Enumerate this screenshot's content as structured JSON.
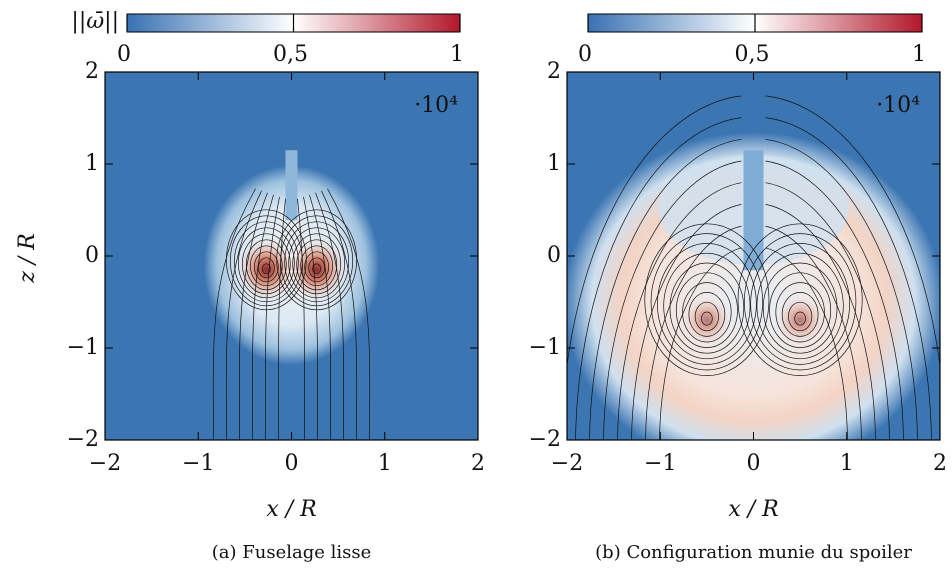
{
  "chart_data": [
    {
      "type": "contour",
      "caption": "(a) Fuselage lisse",
      "xlabel": "x / R",
      "ylabel": "z / R",
      "xlim": [
        -2,
        2
      ],
      "ylim": [
        -2,
        2
      ],
      "xticks": [
        {
          "value": -2,
          "label": "−2"
        },
        {
          "value": -1,
          "label": "−1"
        },
        0,
        1,
        2
      ],
      "yticks": [
        {
          "value": -2,
          "label": "−2"
        },
        {
          "value": -1,
          "label": "−1"
        },
        0,
        1,
        2
      ],
      "colorbar": {
        "label": "||ω̄||",
        "lim": [
          0,
          1
        ],
        "ticks": [
          0,
          {
            "value": 0.5,
            "label": "0,5"
          },
          1
        ],
        "multiplier": "·10⁴",
        "colors": [
          "#3a72b3",
          "#ffffff",
          "#b2182b"
        ]
      }
    },
    {
      "type": "contour",
      "caption": "(b) Configuration munie du spoiler",
      "xlabel": "x / R",
      "xlim": [
        -2,
        2
      ],
      "ylim": [
        -2,
        2
      ],
      "xticks": [
        {
          "value": -2,
          "label": "−2"
        },
        {
          "value": -1,
          "label": "−1"
        },
        0,
        1,
        2
      ],
      "yticks": [
        {
          "value": -2,
          "label": "−2"
        },
        {
          "value": -1,
          "label": "−1"
        },
        0,
        1,
        2
      ],
      "colorbar": {
        "lim": [
          0,
          1
        ],
        "ticks": [
          0,
          {
            "value": 0.5,
            "label": "0,5"
          },
          1
        ],
        "multiplier": "·10⁴",
        "colors": [
          "#3a72b3",
          "#ffffff",
          "#b2182b"
        ]
      }
    }
  ]
}
